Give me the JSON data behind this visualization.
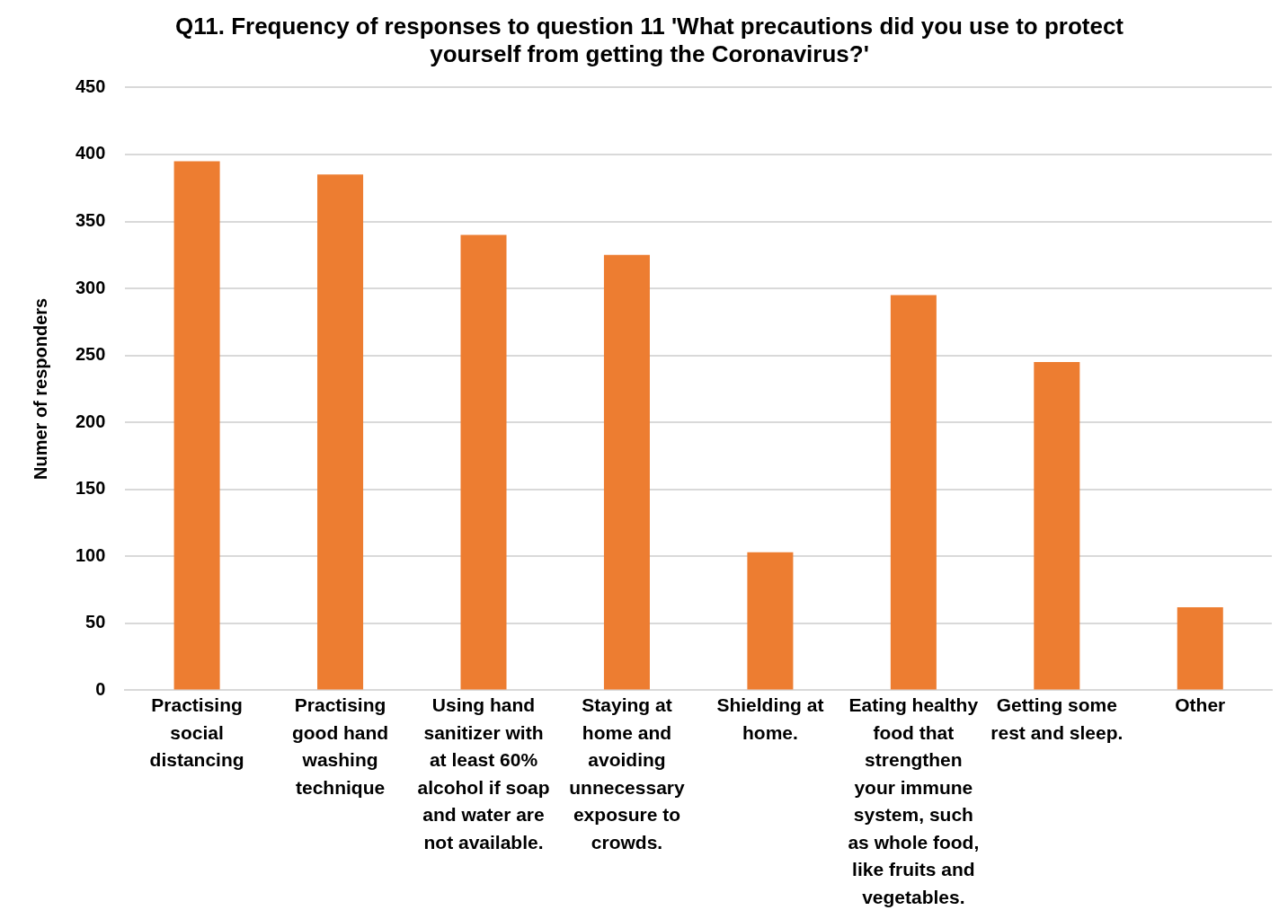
{
  "chart_data": {
    "type": "bar",
    "title": "Q11. Frequency of responses to question 11 'What precautions did you use to protect yourself from getting the Coronavirus?'",
    "ylabel": "Numer of responders",
    "categories": [
      "Practising social distancing",
      "Practising good hand washing technique",
      "Using hand sanitizer with at least 60% alcohol if soap and water are not available.",
      "Staying at home and avoiding unnecessary exposure to crowds.",
      "Shielding at home.",
      "Eating healthy food that strengthen your immune system, such as whole food, like fruits and vegetables.",
      "Getting some rest and sleep.",
      "Other"
    ],
    "values": [
      395,
      385,
      340,
      325,
      103,
      295,
      245,
      62
    ],
    "color": "#ed7d31",
    "ylim": [
      0,
      450
    ],
    "yticks": [
      0,
      50,
      100,
      150,
      200,
      250,
      300,
      350,
      400,
      450
    ],
    "grid": "y"
  }
}
